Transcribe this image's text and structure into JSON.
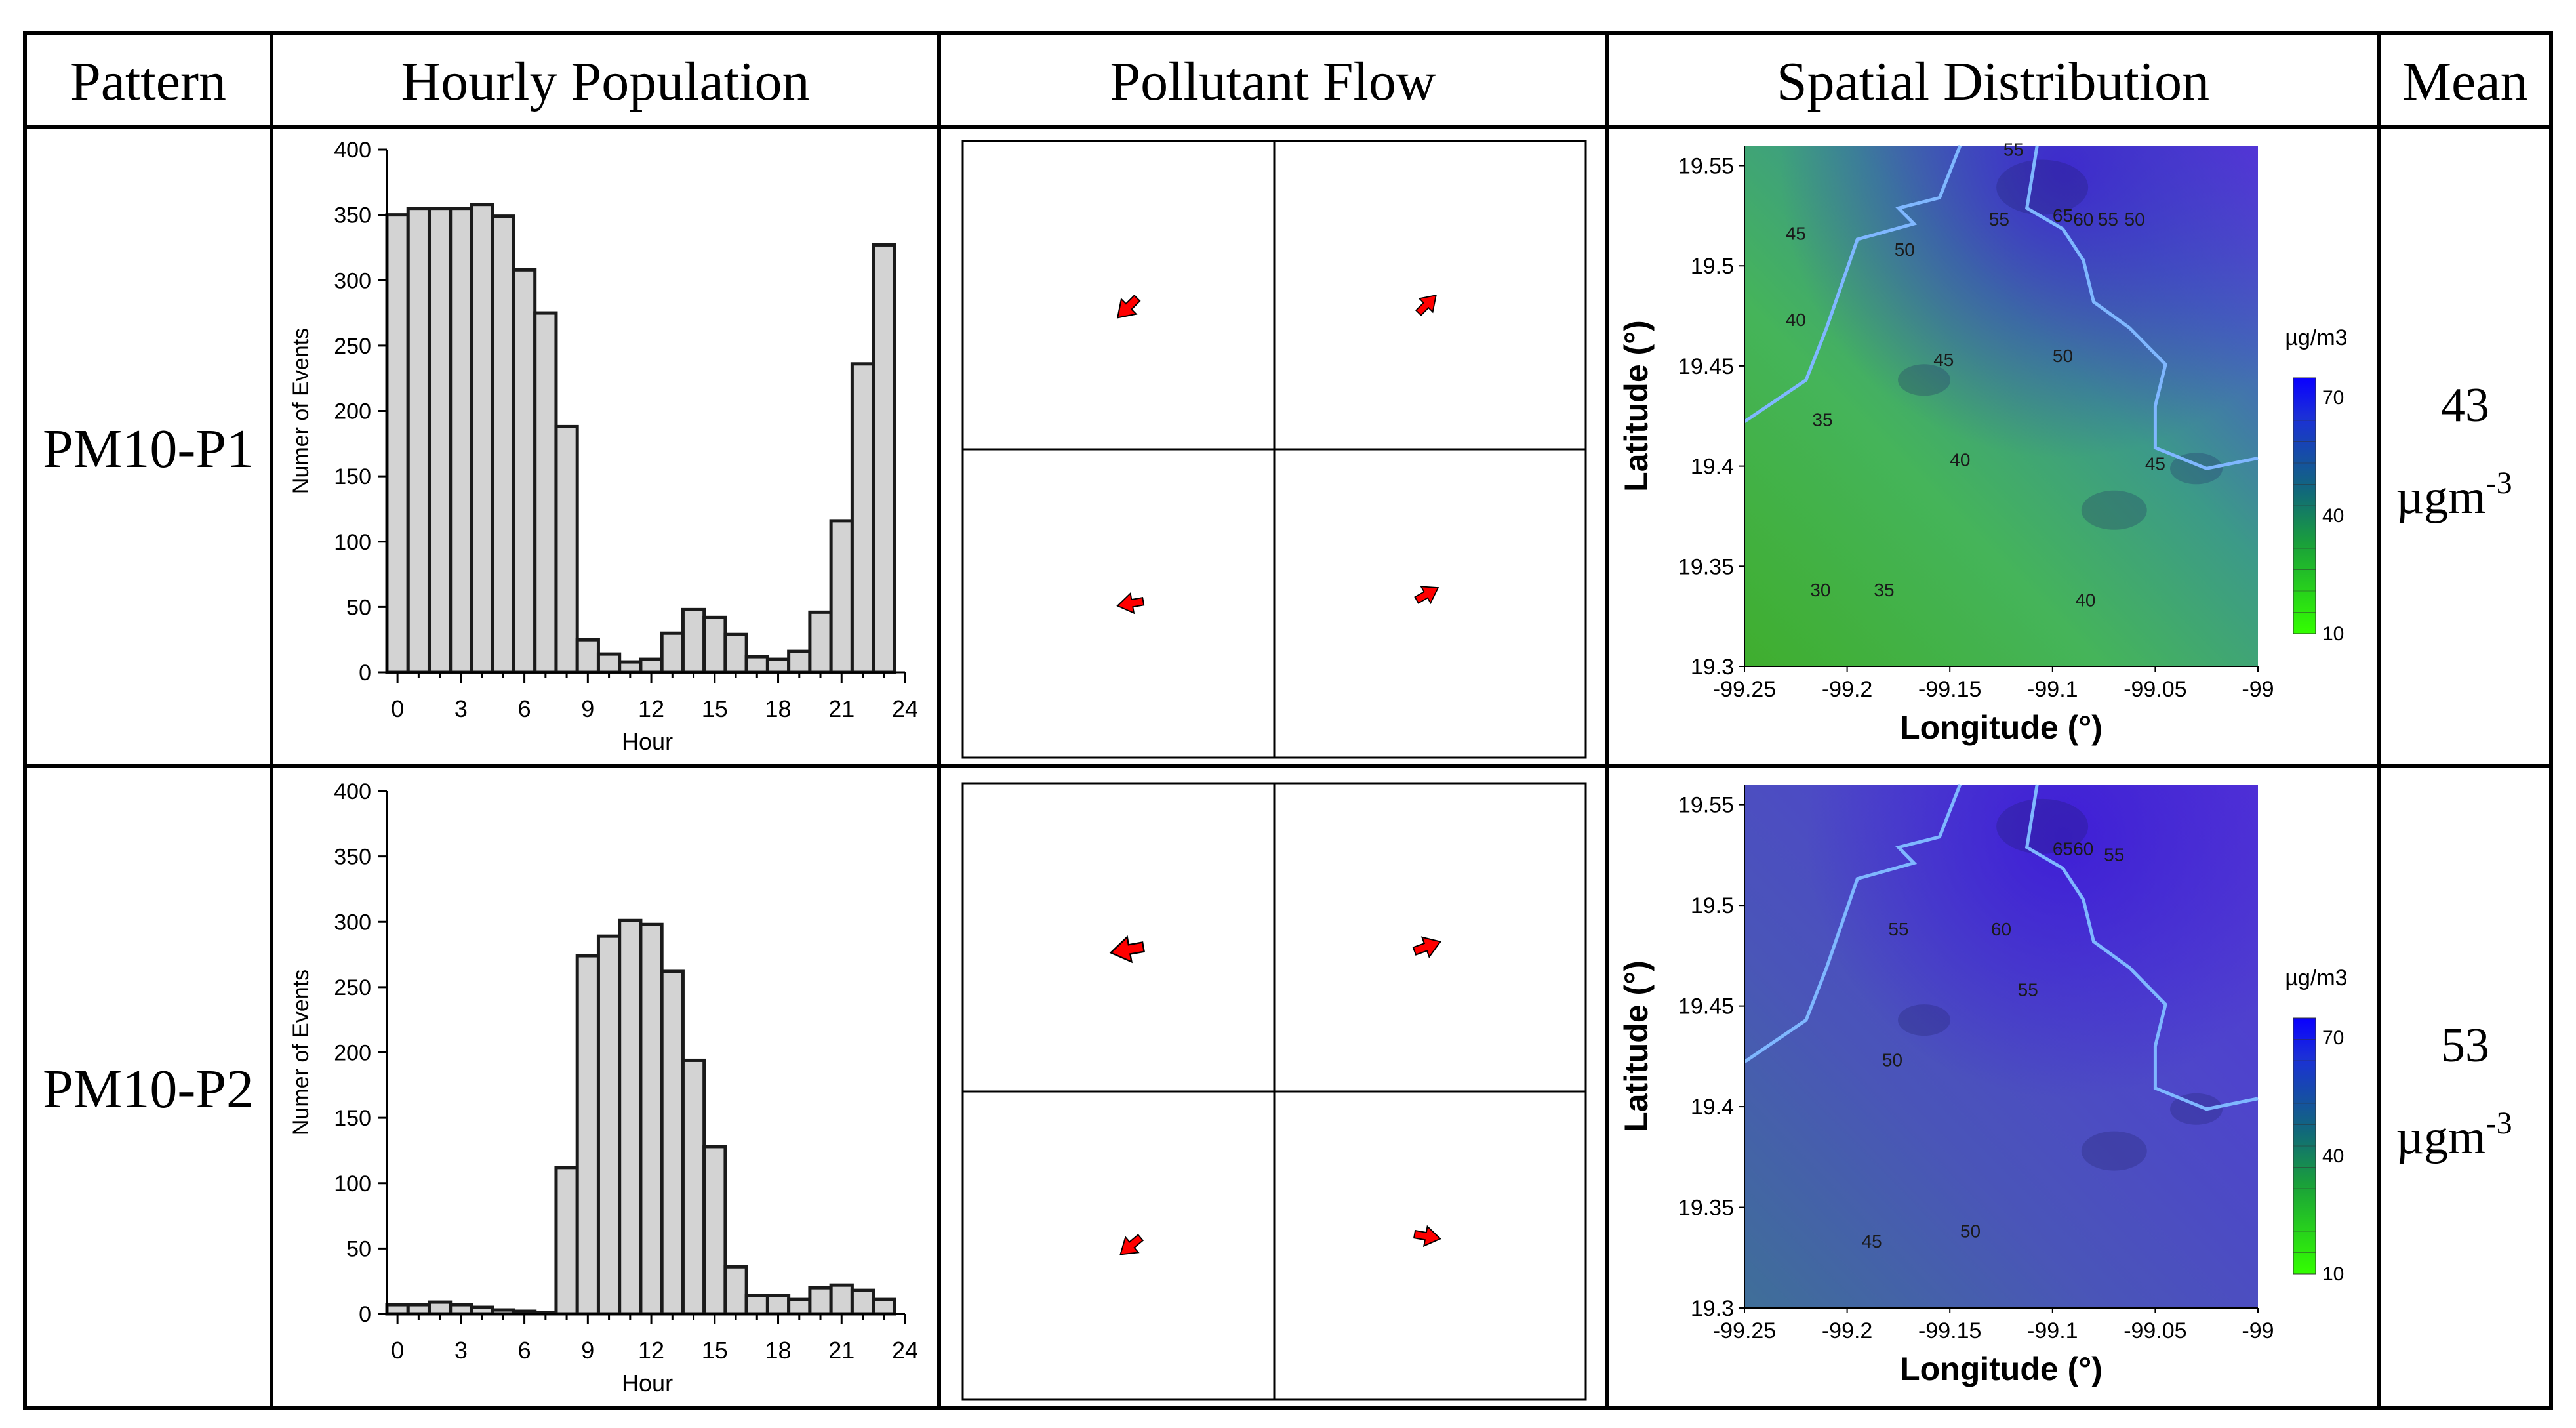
{
  "table": {
    "headers": [
      "Pattern",
      "Hourly Population",
      "Pollutant Flow",
      "Spatial Distribution",
      "Mean"
    ],
    "mean_unit": "µgm",
    "mean_unit_exp": "-3",
    "rows": [
      {
        "pattern": "PM10-P1",
        "mean": "43"
      },
      {
        "pattern": "PM10-P2",
        "mean": "53"
      }
    ]
  },
  "colors": {
    "bar_fill": "#d3d3d3",
    "bar_stroke": "#1a1a1a",
    "arrow_fill": "#ff0000",
    "map_low": "#3cb83a",
    "map_mid": "#2f8f7a",
    "map_high": "#4b3ad8",
    "boundary": "#7fb7ff"
  },
  "chart_data": [
    {
      "type": "bar",
      "panel": "PM10-P1 hourly population",
      "xlabel": "Hour",
      "ylabel": "Numer of Events",
      "x": [
        0,
        1,
        2,
        3,
        4,
        5,
        6,
        7,
        8,
        9,
        10,
        11,
        12,
        13,
        14,
        15,
        16,
        17,
        18,
        19,
        20,
        21,
        22,
        23
      ],
      "values": [
        350,
        355,
        355,
        355,
        358,
        349,
        308,
        275,
        188,
        25,
        14,
        8,
        10,
        30,
        48,
        42,
        29,
        12,
        10,
        16,
        46,
        116,
        236,
        327
      ],
      "xticks": [
        "0",
        "3",
        "6",
        "9",
        "12",
        "15",
        "18",
        "21",
        "24"
      ],
      "yticks": [
        "0",
        "50",
        "100",
        "150",
        "200",
        "250",
        "300",
        "350",
        "400"
      ],
      "xlim": [
        -0.5,
        24
      ],
      "ylim": [
        0,
        400
      ]
    },
    {
      "type": "bar",
      "panel": "PM10-P2 hourly population",
      "xlabel": "Hour",
      "ylabel": "Numer of Events",
      "x": [
        0,
        1,
        2,
        3,
        4,
        5,
        6,
        7,
        8,
        9,
        10,
        11,
        12,
        13,
        14,
        15,
        16,
        17,
        18,
        19,
        20,
        21,
        22,
        23
      ],
      "values": [
        7,
        7,
        9,
        7,
        5,
        3,
        2,
        1,
        112,
        274,
        289,
        301,
        298,
        262,
        194,
        128,
        36,
        14,
        14,
        11,
        20,
        22,
        18,
        11
      ],
      "xticks": [
        "0",
        "3",
        "6",
        "9",
        "12",
        "15",
        "18",
        "21",
        "24"
      ],
      "yticks": [
        "0",
        "50",
        "100",
        "150",
        "200",
        "250",
        "300",
        "350",
        "400"
      ],
      "xlim": [
        -0.5,
        24
      ],
      "ylim": [
        0,
        400
      ]
    },
    {
      "type": "heatmap",
      "panel": "PM10-P1 spatial distribution",
      "xlabel": "Longitude (°)",
      "ylabel": "Latitude (°)",
      "xticks": [
        "-99.25",
        "-99.2",
        "-99.15",
        "-99.1",
        "-99.05",
        "-99"
      ],
      "yticks": [
        "19.3",
        "19.35",
        "19.4",
        "19.45",
        "19.5",
        "19.55"
      ],
      "xlim": [
        -99.25,
        -99
      ],
      "ylim": [
        19.3,
        19.56
      ],
      "colorbar_label": "µg/m3",
      "colorbar_ticks": [
        "10",
        "40",
        "70"
      ],
      "contour_labels": [
        {
          "text": "45",
          "lon": -99.225,
          "lat": 19.513
        },
        {
          "text": "50",
          "lon": -99.172,
          "lat": 19.505
        },
        {
          "text": "40",
          "lon": -99.225,
          "lat": 19.47
        },
        {
          "text": "45",
          "lon": -99.153,
          "lat": 19.45
        },
        {
          "text": "50",
          "lon": -99.095,
          "lat": 19.452
        },
        {
          "text": "35",
          "lon": -99.212,
          "lat": 19.42
        },
        {
          "text": "40",
          "lon": -99.145,
          "lat": 19.4
        },
        {
          "text": "45",
          "lon": -99.05,
          "lat": 19.398
        },
        {
          "text": "30",
          "lon": -99.213,
          "lat": 19.335
        },
        {
          "text": "35",
          "lon": -99.182,
          "lat": 19.335
        },
        {
          "text": "40",
          "lon": -99.084,
          "lat": 19.33
        },
        {
          "text": "55",
          "lon": -99.126,
          "lat": 19.52
        },
        {
          "text": "65",
          "lon": -99.095,
          "lat": 19.522
        },
        {
          "text": "60",
          "lon": -99.085,
          "lat": 19.52
        },
        {
          "text": "55",
          "lon": -99.073,
          "lat": 19.52
        },
        {
          "text": "50",
          "lon": -99.06,
          "lat": 19.52
        },
        {
          "text": "55",
          "lon": -99.119,
          "lat": 19.555
        }
      ]
    },
    {
      "type": "heatmap",
      "panel": "PM10-P2 spatial distribution",
      "xlabel": "Longitude (°)",
      "ylabel": "Latitude (°)",
      "xticks": [
        "-99.25",
        "-99.2",
        "-99.15",
        "-99.1",
        "-99.05",
        "-99"
      ],
      "yticks": [
        "19.3",
        "19.35",
        "19.4",
        "19.45",
        "19.5",
        "19.55"
      ],
      "xlim": [
        -99.25,
        -99
      ],
      "ylim": [
        19.3,
        19.56
      ],
      "colorbar_label": "µg/m3",
      "colorbar_ticks": [
        "10",
        "40",
        "70"
      ],
      "contour_labels": [
        {
          "text": "55",
          "lon": -99.175,
          "lat": 19.485
        },
        {
          "text": "60",
          "lon": -99.125,
          "lat": 19.485
        },
        {
          "text": "55",
          "lon": -99.112,
          "lat": 19.455
        },
        {
          "text": "50",
          "lon": -99.178,
          "lat": 19.42
        },
        {
          "text": "45",
          "lon": -99.188,
          "lat": 19.33
        },
        {
          "text": "50",
          "lon": -99.14,
          "lat": 19.335
        },
        {
          "text": "65",
          "lon": -99.095,
          "lat": 19.525
        },
        {
          "text": "60",
          "lon": -99.085,
          "lat": 19.525
        },
        {
          "text": "55",
          "lon": -99.07,
          "lat": 19.522
        }
      ]
    }
  ],
  "flow_arrows": [
    [
      {
        "quadrant": "top-left",
        "direction_deg": 225,
        "speed": 1.0
      },
      {
        "quadrant": "top-right",
        "direction_deg": 45,
        "speed": 0.9
      },
      {
        "quadrant": "bottom-left",
        "direction_deg": 260,
        "speed": 0.95
      },
      {
        "quadrant": "bottom-right",
        "direction_deg": 60,
        "speed": 0.9
      }
    ],
    [
      {
        "quadrant": "top-left",
        "direction_deg": 260,
        "speed": 1.2
      },
      {
        "quadrant": "top-right",
        "direction_deg": 70,
        "speed": 1.0
      },
      {
        "quadrant": "bottom-left",
        "direction_deg": 230,
        "speed": 0.95
      },
      {
        "quadrant": "bottom-right",
        "direction_deg": 100,
        "speed": 0.95
      }
    ]
  ]
}
